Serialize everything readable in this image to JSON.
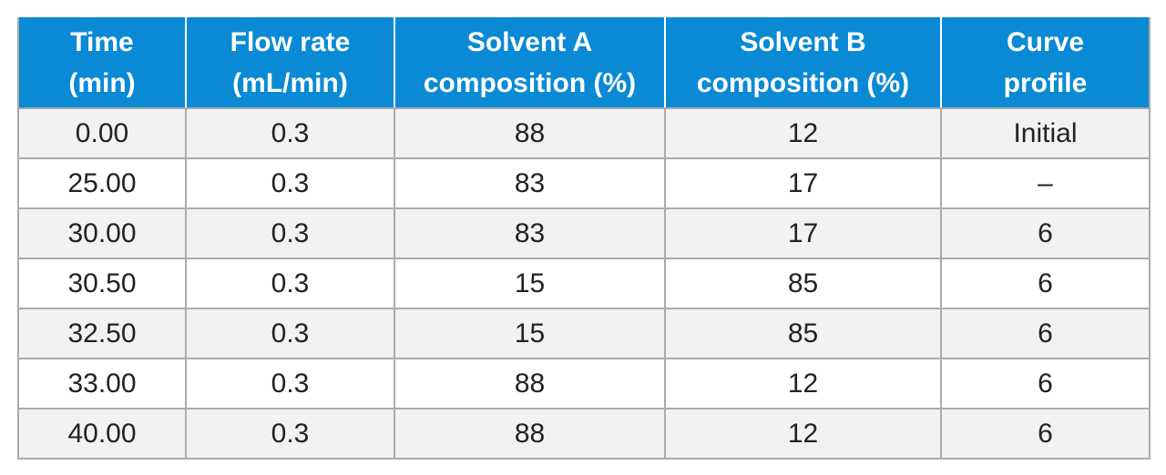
{
  "table": {
    "headers": [
      "Time\n(min)",
      "Flow rate\n(mL/min)",
      "Solvent A\ncomposition (%)",
      "Solvent B\ncomposition (%)",
      "Curve\nprofile"
    ],
    "rows": [
      [
        "0.00",
        "0.3",
        "88",
        "12",
        "Initial"
      ],
      [
        "25.00",
        "0.3",
        "83",
        "17",
        "–"
      ],
      [
        "30.00",
        "0.3",
        "83",
        "17",
        "6"
      ],
      [
        "30.50",
        "0.3",
        "15",
        "85",
        "6"
      ],
      [
        "32.50",
        "0.3",
        "15",
        "85",
        "6"
      ],
      [
        "33.00",
        "0.3",
        "88",
        "12",
        "6"
      ],
      [
        "40.00",
        "0.3",
        "88",
        "12",
        "6"
      ]
    ]
  },
  "colors": {
    "header_background": "#0a8ad4",
    "header_text": "#ffffff",
    "row_alt_background": "#f2f2f3",
    "grid_lines": "#a9abae"
  }
}
